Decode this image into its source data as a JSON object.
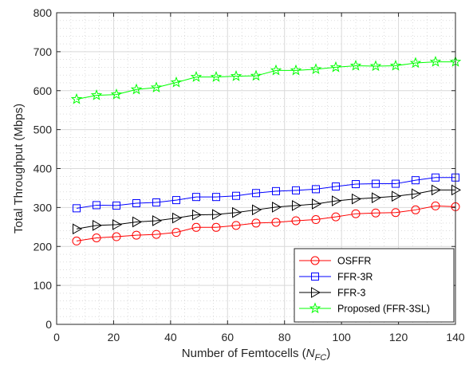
{
  "chart_data": {
    "type": "line",
    "title": "",
    "xlabel": "Number of Femtocells (",
    "xlabel_var": "N",
    "xlabel_sub": "FC",
    "xlabel_close": ")",
    "ylabel": "Total Throughput (Mbps)",
    "xlim": [
      0,
      140
    ],
    "ylim": [
      0,
      800
    ],
    "xticks": [
      0,
      20,
      40,
      60,
      80,
      100,
      120,
      140
    ],
    "yticks": [
      0,
      100,
      200,
      300,
      400,
      500,
      600,
      700,
      800
    ],
    "grid": true,
    "minor_grid": true,
    "legend_position": "bottom-right",
    "x": [
      7,
      14,
      21,
      28,
      35,
      42,
      49,
      56,
      63,
      70,
      77,
      84,
      91,
      98,
      105,
      112,
      119,
      126,
      133,
      140
    ],
    "series": [
      {
        "name": "OSFFR",
        "color": "#ff0000",
        "marker": "circle",
        "values": [
          214,
          222,
          225,
          229,
          231,
          236,
          249,
          249,
          254,
          260,
          262,
          266,
          269,
          276,
          284,
          286,
          287,
          294,
          304,
          302
        ]
      },
      {
        "name": "FFR-3R",
        "color": "#0000ff",
        "marker": "square",
        "values": [
          298,
          306,
          305,
          311,
          313,
          319,
          327,
          327,
          330,
          337,
          342,
          344,
          347,
          354,
          360,
          361,
          361,
          370,
          377,
          377
        ]
      },
      {
        "name": "FFR-3",
        "color": "#000000",
        "marker": "triangle-right",
        "values": [
          245,
          254,
          256,
          263,
          266,
          273,
          281,
          282,
          287,
          294,
          301,
          305,
          309,
          317,
          322,
          325,
          329,
          335,
          345,
          345
        ]
      },
      {
        "name": "Proposed (FFR-3SL)",
        "color": "#00ff00",
        "marker": "star",
        "values": [
          578,
          588,
          590,
          603,
          608,
          621,
          635,
          635,
          637,
          638,
          652,
          652,
          655,
          660,
          664,
          663,
          664,
          671,
          674,
          674
        ]
      }
    ]
  }
}
